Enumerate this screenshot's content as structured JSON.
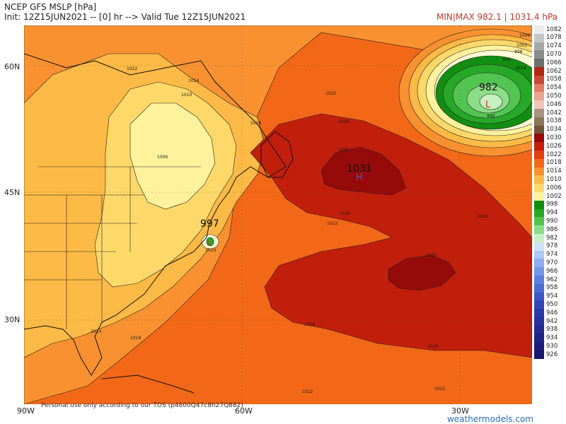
{
  "header": {
    "title": "NCEP GFS MSLP [hPa]",
    "run": "Init: 12Z15JUN2021 -- [0] hr --> Valid Tue 12Z15JUN2021",
    "minmax": "MIN|MAX 982.1 | 1031.4 hPa"
  },
  "axes": {
    "lat_labels": [
      "60N",
      "45N",
      "30N"
    ],
    "lon_labels": [
      "90W",
      "60W",
      "30W"
    ]
  },
  "map_labels": {
    "high_value": "1031",
    "high_symbol": "H",
    "low1_value": "982",
    "low1_symbol": "L",
    "low2_value": "997",
    "low2_symbol": "L"
  },
  "contour_labels": {
    "c1022a": "1022",
    "c1022b": "1022",
    "c1022c": "1022",
    "c1022d": "1022",
    "c1022e": "1022",
    "c1026a": "1026",
    "c1026b": "1026",
    "c1026c": "1026",
    "c1026d": "1026",
    "c1026e": "1026",
    "c1030a": "1030",
    "c1030b": "1030",
    "c1018a": "1018",
    "c1018b": "1018",
    "c1014a": "1014",
    "c1014b": "1014",
    "c1014c": "1014",
    "c1010a": "1010",
    "c1010b": "1010",
    "c1006": "1006",
    "c1002": "1002",
    "c998": "998",
    "c994": "994",
    "c990": "990",
    "c1006b": "1006"
  },
  "legend": {
    "values": [
      "1082",
      "1078",
      "1074",
      "1070",
      "1066",
      "1062",
      "1058",
      "1054",
      "1050",
      "1046",
      "1042",
      "1038",
      "1034",
      "1030",
      "1026",
      "1022",
      "1018",
      "1014",
      "1010",
      "1006",
      "1002",
      "998",
      "994",
      "990",
      "986",
      "982",
      "978",
      "974",
      "970",
      "966",
      "962",
      "958",
      "954",
      "950",
      "946",
      "942",
      "938",
      "934",
      "930",
      "926"
    ],
    "colors": [
      "#ececec",
      "#c6c6c6",
      "#a8a8a8",
      "#8b8b8b",
      "#6e6e6e",
      "#b02810",
      "#c84838",
      "#de7d62",
      "#eba48e",
      "#f1c6b8",
      "#a89480",
      "#8c7458",
      "#6e5436",
      "#960a0a",
      "#c21e0c",
      "#e33d10",
      "#f26818",
      "#f99131",
      "#fdba46",
      "#fed96a",
      "#fff29d",
      "#128f12",
      "#27a827",
      "#52c452",
      "#8bdd88",
      "#c6f0c0",
      "#cfe0fa",
      "#aec8f4",
      "#8eaeee",
      "#7196e6",
      "#5a80dc",
      "#4a6ad2",
      "#3c56c6",
      "#3246b8",
      "#2b3aaa",
      "#27319c",
      "#24298e",
      "#202284",
      "#1c1c7a",
      "#18186e"
    ]
  },
  "footer": {
    "disclaimer": "Personal use only according to our TOS (p4800Q47c8h27Q882)",
    "brand": "weathermodels.com"
  }
}
